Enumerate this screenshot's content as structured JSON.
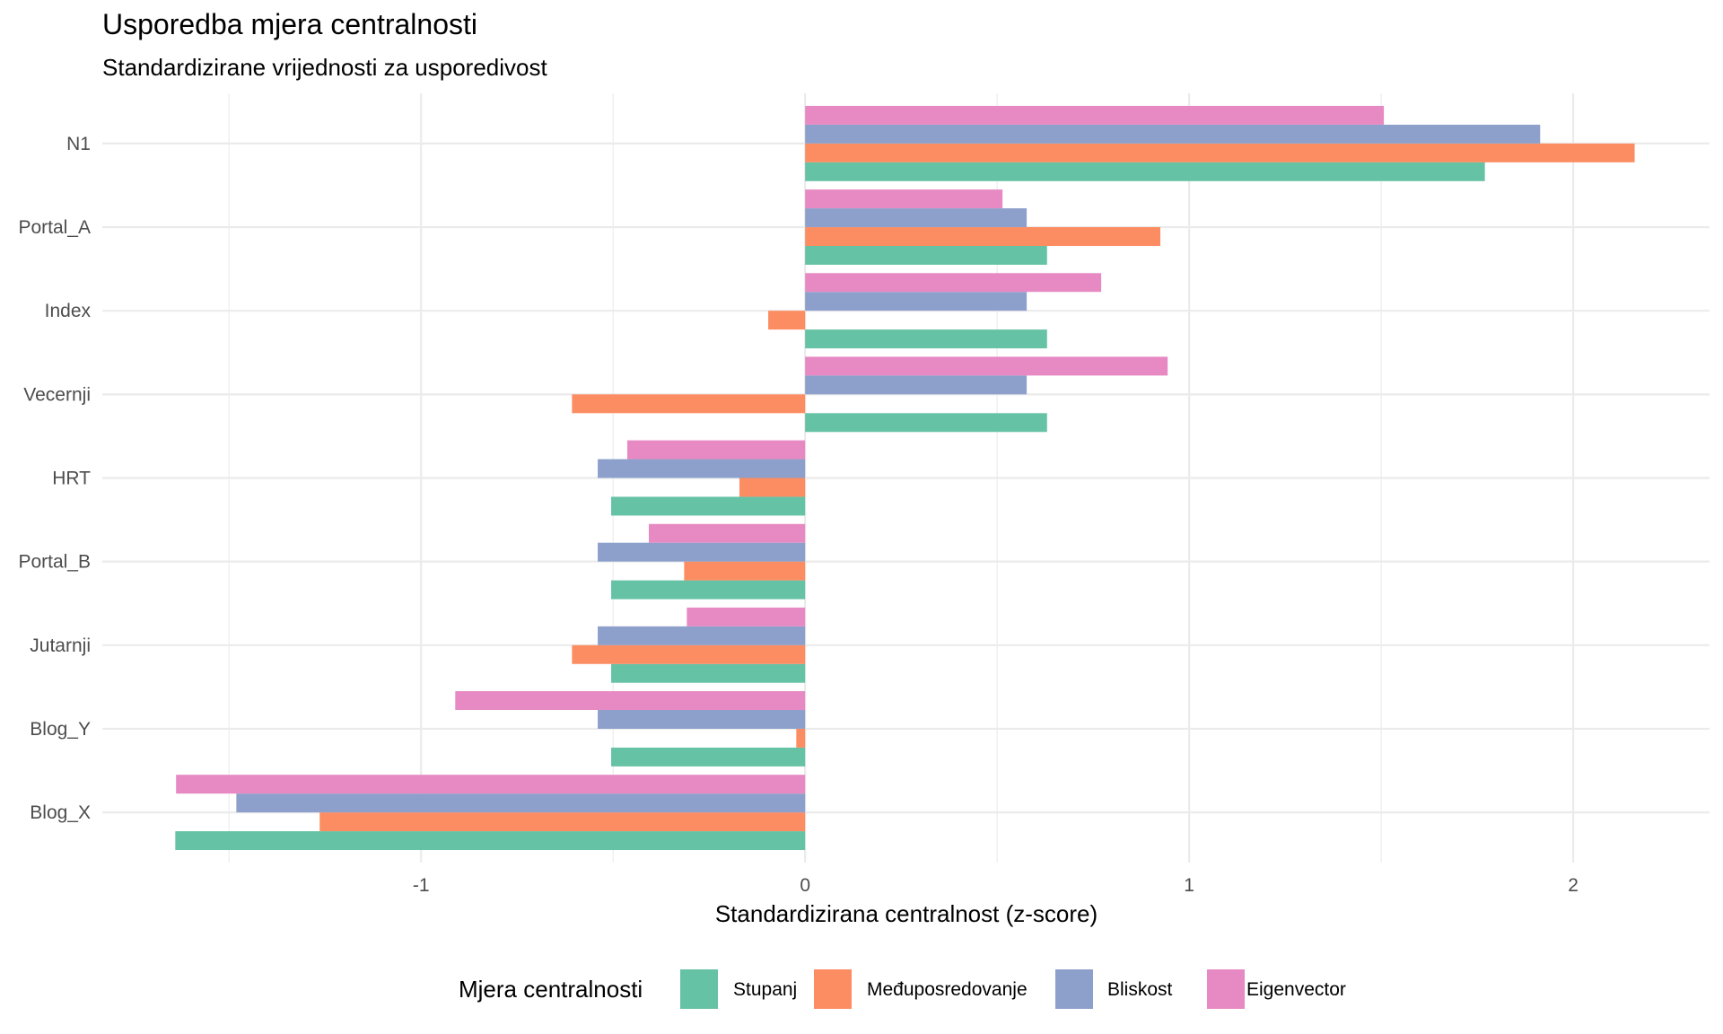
{
  "chart_data": {
    "type": "bar",
    "orientation": "horizontal",
    "title": "Usporedba mjera centralnosti",
    "subtitle": "Standardizirane vrijednosti za usporedivost",
    "xlabel": "Standardizirana centralnost (z-score)",
    "ylabel": "",
    "xlim": [
      -1.83,
      2.355
    ],
    "xticks": [
      -1,
      0,
      1,
      2
    ],
    "xtick_labels": [
      "-1",
      "0",
      "1",
      "2"
    ],
    "grid": true,
    "categories": [
      "N1",
      "Portal_A",
      "Index",
      "Vecernji",
      "HRT",
      "Portal_B",
      "Jutarnji",
      "Blog_Y",
      "Blog_X"
    ],
    "legend": {
      "title": "Mjera centralnosti",
      "position": "bottom"
    },
    "series": [
      {
        "name": "Stupanj",
        "color": "#66c2a5",
        "values": [
          1.77,
          0.63,
          0.63,
          0.63,
          -0.505,
          -0.505,
          -0.505,
          -0.505,
          -1.64
        ]
      },
      {
        "name": "Međuposredovanje",
        "color": "#fc8d62",
        "values": [
          2.16,
          0.925,
          -0.096,
          -0.607,
          -0.171,
          -0.315,
          -0.607,
          -0.023,
          -1.264
        ]
      },
      {
        "name": "Bliskost",
        "color": "#8da0cb",
        "values": [
          1.914,
          0.577,
          0.577,
          0.577,
          -0.54,
          -0.54,
          -0.54,
          -0.54,
          -1.481
        ]
      },
      {
        "name": "Eigenvector",
        "color": "#e78ac3",
        "values": [
          1.507,
          0.514,
          0.771,
          0.944,
          -0.463,
          -0.407,
          -0.308,
          -0.911,
          -1.638
        ]
      }
    ]
  }
}
